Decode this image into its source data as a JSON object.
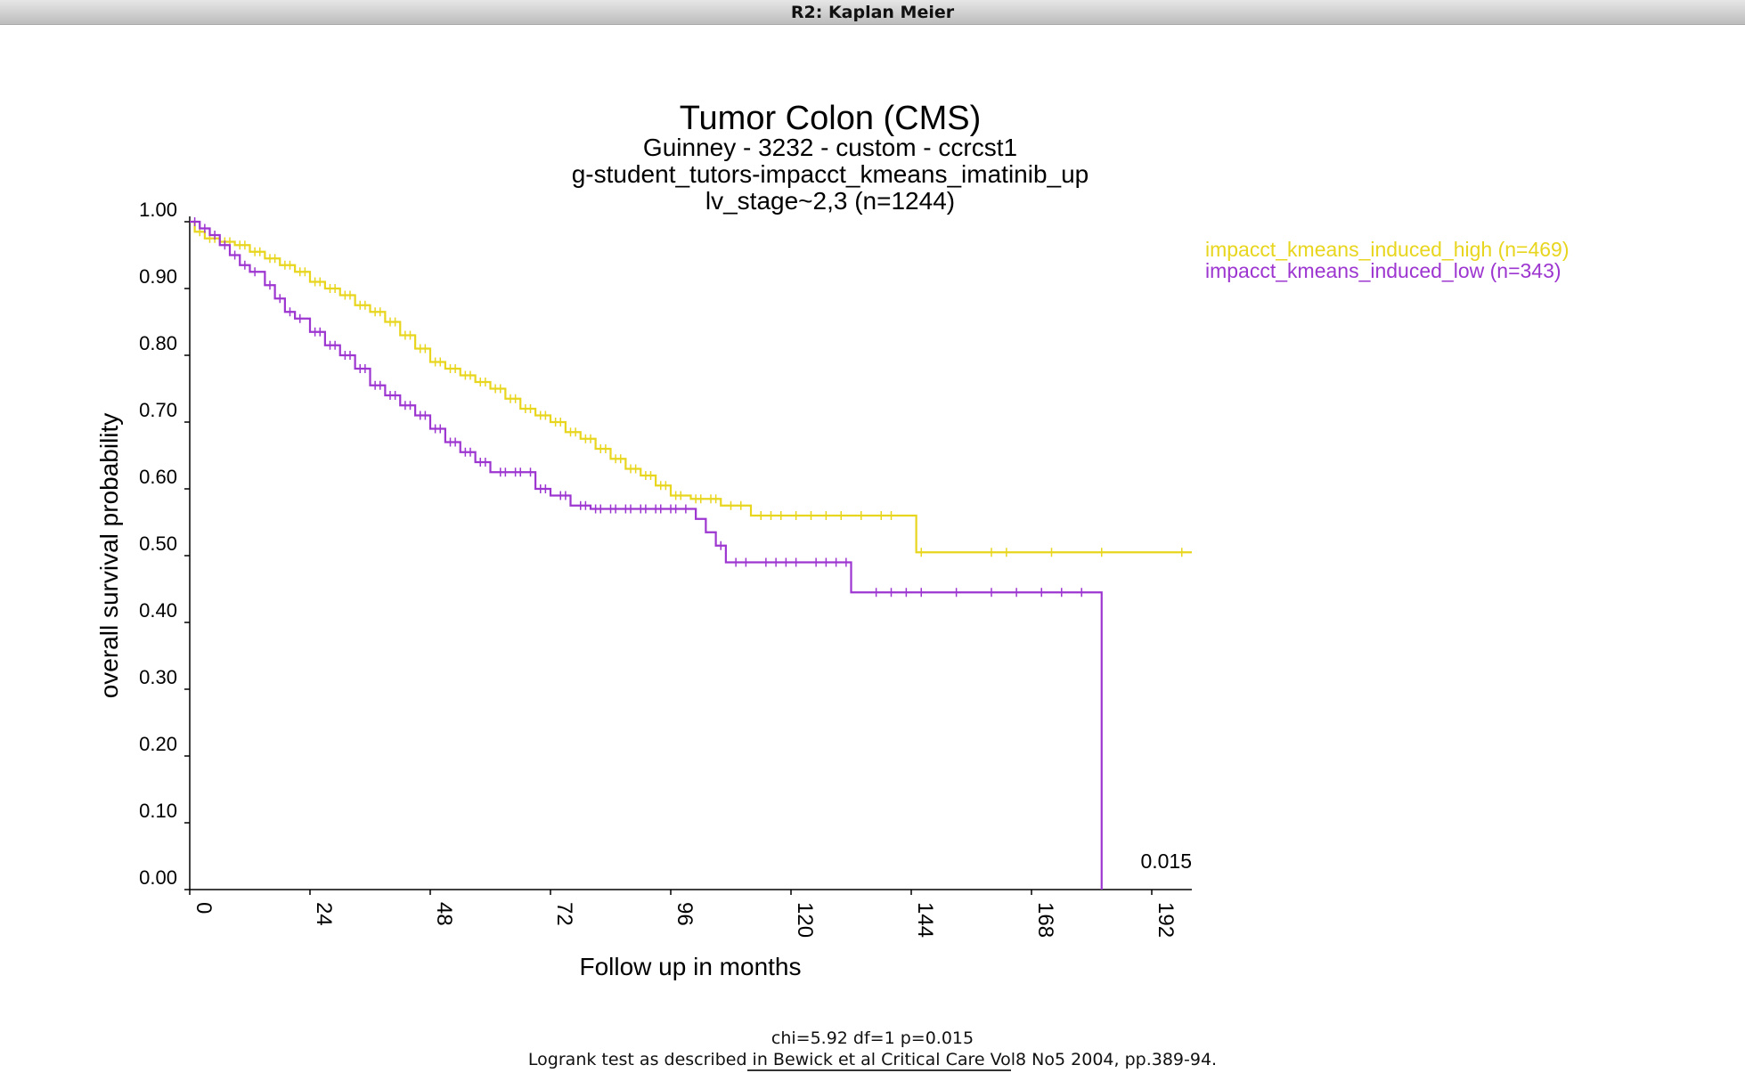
{
  "window": {
    "title": "R2: Kaplan Meier"
  },
  "chart_data": {
    "type": "line",
    "title": "Tumor Colon (CMS)",
    "subtitle_lines": [
      "Guinney - 3232 - custom - ccrcst1",
      "g-student_tutors-impacct_kmeans_imatinib_up",
      "lv_stage~2,3 (n=1244)"
    ],
    "xlabel": "Follow up in months",
    "ylabel": "overall survival probability",
    "xlim": [
      0,
      200
    ],
    "ylim": [
      0,
      1
    ],
    "x_ticks": [
      "0",
      "24",
      "48",
      "72",
      "96",
      "120",
      "144",
      "168",
      "192"
    ],
    "y_ticks": [
      "0.00",
      "0.10",
      "0.20",
      "0.30",
      "0.40",
      "0.50",
      "0.60",
      "0.70",
      "0.80",
      "0.90",
      "1.00"
    ],
    "pvalue_label": "0.015",
    "legend_placement": "top-right",
    "series": [
      {
        "name": "impacct_kmeans_induced_high (n=469)",
        "color": "#e8d51e",
        "steps": [
          [
            0,
            1.0
          ],
          [
            1,
            0.985
          ],
          [
            3,
            0.975
          ],
          [
            6,
            0.97
          ],
          [
            9,
            0.965
          ],
          [
            12,
            0.955
          ],
          [
            15,
            0.945
          ],
          [
            18,
            0.935
          ],
          [
            21,
            0.925
          ],
          [
            24,
            0.91
          ],
          [
            27,
            0.9
          ],
          [
            30,
            0.89
          ],
          [
            33,
            0.875
          ],
          [
            36,
            0.865
          ],
          [
            39,
            0.85
          ],
          [
            42,
            0.83
          ],
          [
            45,
            0.81
          ],
          [
            48,
            0.79
          ],
          [
            51,
            0.78
          ],
          [
            54,
            0.77
          ],
          [
            57,
            0.76
          ],
          [
            60,
            0.75
          ],
          [
            63,
            0.735
          ],
          [
            66,
            0.72
          ],
          [
            69,
            0.71
          ],
          [
            72,
            0.7
          ],
          [
            75,
            0.685
          ],
          [
            78,
            0.675
          ],
          [
            81,
            0.66
          ],
          [
            84,
            0.645
          ],
          [
            87,
            0.63
          ],
          [
            90,
            0.62
          ],
          [
            93,
            0.605
          ],
          [
            96,
            0.59
          ],
          [
            100,
            0.585
          ],
          [
            106,
            0.575
          ],
          [
            112,
            0.56
          ],
          [
            120,
            0.56
          ],
          [
            145,
            0.56
          ],
          [
            145,
            0.505
          ],
          [
            200,
            0.505
          ]
        ],
        "censor_x": [
          2,
          4,
          5,
          7,
          8,
          10,
          11,
          13,
          14,
          16,
          17,
          19,
          20,
          22,
          23,
          25,
          26,
          28,
          29,
          31,
          32,
          34,
          35,
          37,
          38,
          40,
          41,
          43,
          44,
          46,
          47,
          49,
          50,
          52,
          53,
          55,
          56,
          58,
          59,
          61,
          62,
          64,
          65,
          67,
          68,
          70,
          71,
          73,
          74,
          76,
          77,
          79,
          80,
          82,
          83,
          85,
          86,
          88,
          89,
          91,
          92,
          94,
          95,
          97,
          98,
          101,
          102,
          104,
          105,
          108,
          110,
          114,
          116,
          118,
          121,
          124,
          127,
          130,
          134,
          138,
          140,
          146,
          160,
          163,
          172,
          182,
          198
        ]
      },
      {
        "name": "impacct_kmeans_induced_low (n=343)",
        "color": "#9d36d0",
        "steps": [
          [
            0,
            1.0
          ],
          [
            2,
            0.99
          ],
          [
            4,
            0.98
          ],
          [
            6,
            0.965
          ],
          [
            8,
            0.95
          ],
          [
            10,
            0.935
          ],
          [
            12,
            0.925
          ],
          [
            15,
            0.905
          ],
          [
            17,
            0.885
          ],
          [
            19,
            0.865
          ],
          [
            21,
            0.855
          ],
          [
            24,
            0.835
          ],
          [
            27,
            0.815
          ],
          [
            30,
            0.8
          ],
          [
            33,
            0.78
          ],
          [
            36,
            0.755
          ],
          [
            39,
            0.74
          ],
          [
            42,
            0.725
          ],
          [
            45,
            0.71
          ],
          [
            48,
            0.69
          ],
          [
            51,
            0.67
          ],
          [
            54,
            0.655
          ],
          [
            57,
            0.64
          ],
          [
            60,
            0.625
          ],
          [
            67,
            0.625
          ],
          [
            69,
            0.6
          ],
          [
            72,
            0.59
          ],
          [
            76,
            0.575
          ],
          [
            80,
            0.57
          ],
          [
            100,
            0.57
          ],
          [
            101,
            0.555
          ],
          [
            103,
            0.535
          ],
          [
            105,
            0.515
          ],
          [
            107,
            0.49
          ],
          [
            130,
            0.49
          ],
          [
            132,
            0.445
          ],
          [
            182,
            0.445
          ],
          [
            182,
            0.0
          ]
        ],
        "censor_x": [
          1,
          3,
          5,
          7,
          9,
          11,
          13,
          16,
          18,
          20,
          22,
          25,
          26,
          28,
          29,
          31,
          32,
          34,
          35,
          37,
          38,
          40,
          41,
          43,
          44,
          46,
          47,
          49,
          50,
          52,
          53,
          55,
          56,
          58,
          59,
          62,
          63,
          65,
          66,
          68,
          70,
          71,
          74,
          75,
          78,
          79,
          81,
          82,
          84,
          85,
          87,
          88,
          90,
          91,
          93,
          94,
          96,
          97,
          99,
          106,
          109,
          111,
          115,
          117,
          119,
          121,
          125,
          127,
          129,
          131,
          137,
          140,
          143,
          146,
          153,
          160,
          165,
          170,
          174,
          178
        ]
      }
    ],
    "stats_text": "chi=5.92 df=1 p=0.015",
    "reference": {
      "prefix": "Logrank test as described",
      "link": " in Bewick et al Critical Care Vo",
      "suffix": "l8 No5 2004, pp.389-94."
    }
  }
}
